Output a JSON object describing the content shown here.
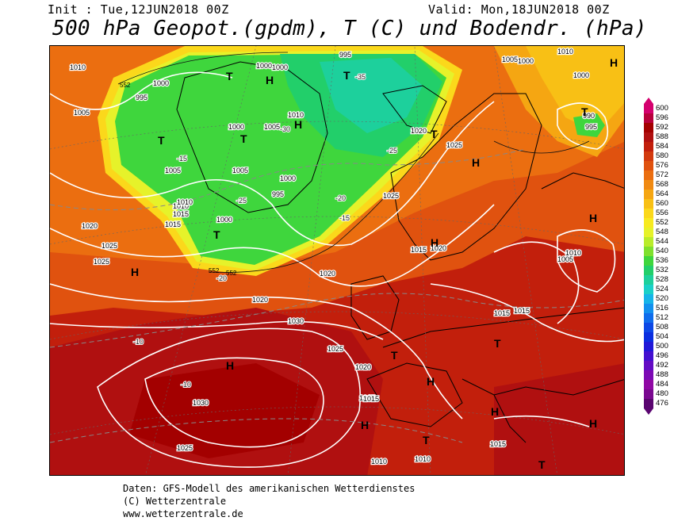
{
  "header": {
    "init": "Init : Tue,12JUN2018 00Z",
    "valid": "Valid: Mon,18JUN2018 00Z",
    "title": "500 hPa Geopot.(gpdm), T (C) und Bodendr. (hPa)"
  },
  "legend": {
    "levels": [
      "600",
      "596",
      "592",
      "588",
      "584",
      "580",
      "576",
      "572",
      "568",
      "564",
      "560",
      "556",
      "552",
      "548",
      "544",
      "540",
      "536",
      "532",
      "528",
      "524",
      "520",
      "516",
      "512",
      "508",
      "504",
      "500",
      "496",
      "492",
      "488",
      "484",
      "480",
      "476"
    ],
    "colors": [
      "#d4006e",
      "#b8003c",
      "#a30000",
      "#b01010",
      "#c21f0c",
      "#d33a0e",
      "#e0520f",
      "#eb6e10",
      "#f08a12",
      "#f5a612",
      "#f8c015",
      "#fbd81b",
      "#f7ea20",
      "#e6f22a",
      "#b9ec2b",
      "#7fe02e",
      "#3fd63d",
      "#22cf6a",
      "#1dd09c",
      "#1ad0c8",
      "#16b4e8",
      "#1290ee",
      "#0f6cec",
      "#0c48e6",
      "#0a2ee0",
      "#2018d8",
      "#4410d0",
      "#640cc4",
      "#7c0ab4",
      "#9008a4",
      "#7a0890",
      "#5a0570"
    ]
  },
  "map": {
    "pressure_labels": [
      {
        "text": "1010"
      },
      {
        "text": "1005"
      },
      {
        "text": "995"
      },
      {
        "text": "1000"
      },
      {
        "text": "1000"
      },
      {
        "text": "995"
      },
      {
        "text": "1000"
      },
      {
        "text": "1005"
      },
      {
        "text": "1010"
      },
      {
        "text": "1000"
      },
      {
        "text": "1005"
      },
      {
        "text": "995"
      },
      {
        "text": "1000"
      },
      {
        "text": "1010"
      },
      {
        "text": "1015"
      },
      {
        "text": "1020"
      },
      {
        "text": "1025"
      },
      {
        "text": "1000"
      },
      {
        "text": "1010"
      },
      {
        "text": "1005"
      },
      {
        "text": "1015"
      },
      {
        "text": "1020"
      },
      {
        "text": "1025"
      },
      {
        "text": "1015"
      },
      {
        "text": "1020"
      },
      {
        "text": "1025"
      },
      {
        "text": "1030"
      },
      {
        "text": "1025"
      },
      {
        "text": "1020"
      },
      {
        "text": "1015"
      },
      {
        "text": "1030"
      },
      {
        "text": "1025"
      },
      {
        "text": "1015"
      },
      {
        "text": "1010"
      },
      {
        "text": "1010"
      },
      {
        "text": "1015"
      },
      {
        "text": "1015"
      },
      {
        "text": "1010"
      },
      {
        "text": "1005"
      },
      {
        "text": "1000"
      },
      {
        "text": "990"
      },
      {
        "text": "995"
      },
      {
        "text": "1020"
      },
      {
        "text": "1025"
      },
      {
        "text": "1010"
      },
      {
        "text": "1005"
      },
      {
        "text": "1000"
      },
      {
        "text": "1020"
      },
      {
        "text": "1015"
      }
    ],
    "temp_labels": [
      "-10",
      "-15",
      "-20",
      "-25",
      "-30",
      "-35",
      "-25",
      "-20",
      "-15",
      "-10"
    ],
    "height_labels": [
      "552",
      "552",
      "552"
    ],
    "pressure_centers": [
      "T",
      "H"
    ]
  },
  "footer": {
    "line1": "Daten: GFS-Modell des amerikanischen Wetterdienstes",
    "line2": "(C) Wetterzentrale",
    "line3": "www.wetterzentrale.de"
  }
}
